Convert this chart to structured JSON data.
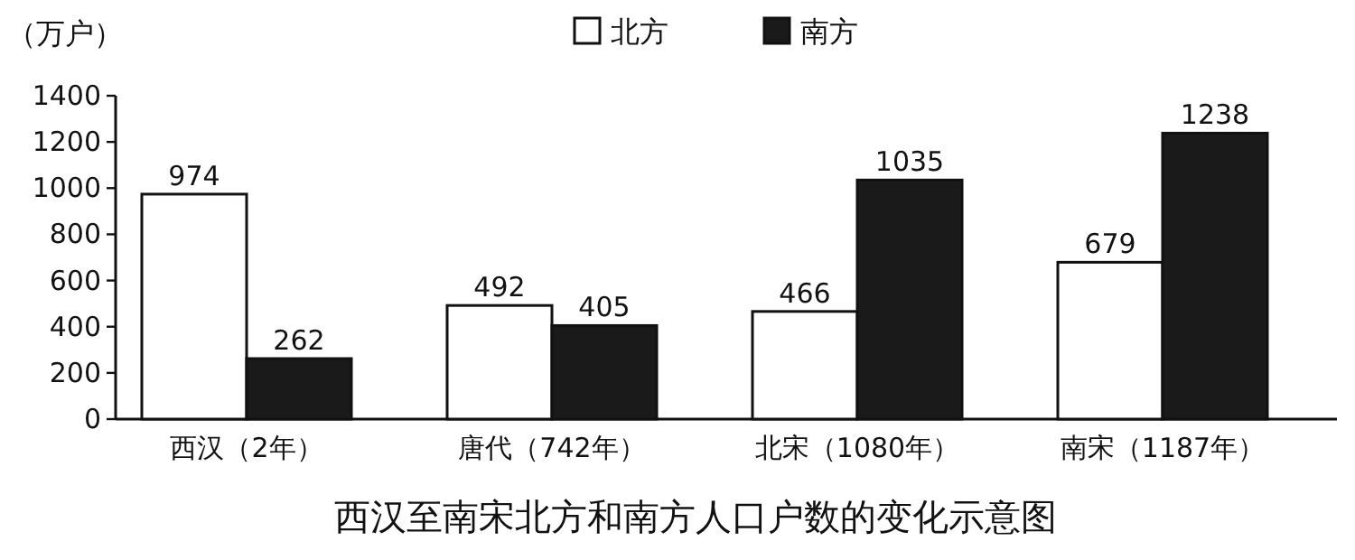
{
  "chart_data": {
    "type": "bar",
    "title": "西汉至南宋北方和南方人口户数的变化示意图",
    "ylabel": "（万户）",
    "categories": [
      "西汉（2年）",
      "唐代（742年）",
      "北宋（1080年）",
      "南宋（1187年）"
    ],
    "series": [
      {
        "name": "北方",
        "color": "#ffffff",
        "values": [
          974,
          492,
          466,
          679
        ]
      },
      {
        "name": "南方",
        "color": "#1a1a1a",
        "values": [
          262,
          405,
          1035,
          1238
        ]
      }
    ],
    "ylim": [
      0,
      1400
    ],
    "yticks": [
      0,
      200,
      400,
      600,
      800,
      1000,
      1200,
      1400
    ],
    "data_labels": true,
    "legend": "top"
  }
}
